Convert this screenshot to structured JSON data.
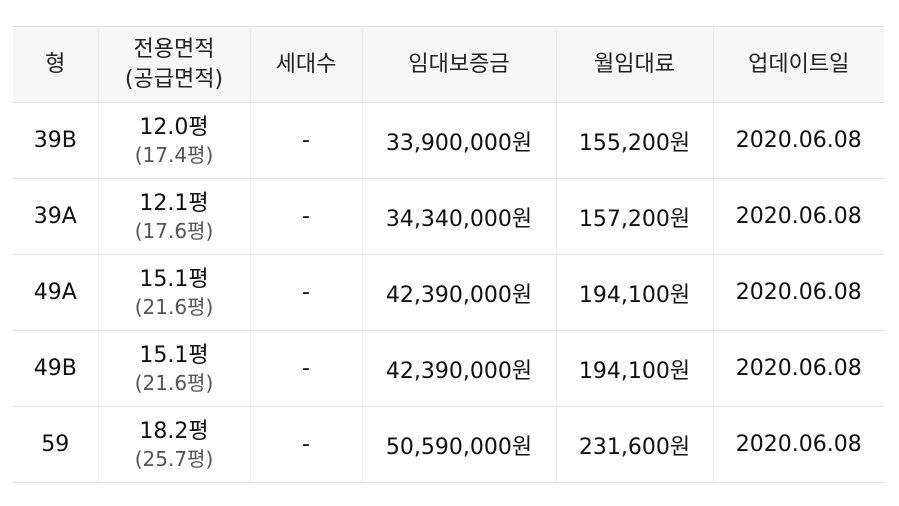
{
  "header": {
    "type": "형",
    "area_line1": "전용면적",
    "area_line2": "(공급면적)",
    "households": "세대수",
    "deposit": "임대보증금",
    "monthly_rent": "월임대료",
    "updated": "업데이트일"
  },
  "rows": [
    {
      "type": "39B",
      "exclusive_area": "12.0평",
      "supply_area": "(17.4평)",
      "households": "-",
      "deposit": "33,900,000원",
      "monthly_rent": "155,200원",
      "updated": "2020.06.08"
    },
    {
      "type": "39A",
      "exclusive_area": "12.1평",
      "supply_area": "(17.6평)",
      "households": "-",
      "deposit": "34,340,000원",
      "monthly_rent": "157,200원",
      "updated": "2020.06.08"
    },
    {
      "type": "49A",
      "exclusive_area": "15.1평",
      "supply_area": "(21.6평)",
      "households": "-",
      "deposit": "42,390,000원",
      "monthly_rent": "194,100원",
      "updated": "2020.06.08"
    },
    {
      "type": "49B",
      "exclusive_area": "15.1평",
      "supply_area": "(21.6평)",
      "households": "-",
      "deposit": "42,390,000원",
      "monthly_rent": "194,100원",
      "updated": "2020.06.08"
    },
    {
      "type": "59",
      "exclusive_area": "18.2평",
      "supply_area": "(25.7평)",
      "households": "-",
      "deposit": "50,590,000원",
      "monthly_rent": "231,600원",
      "updated": "2020.06.08"
    }
  ]
}
